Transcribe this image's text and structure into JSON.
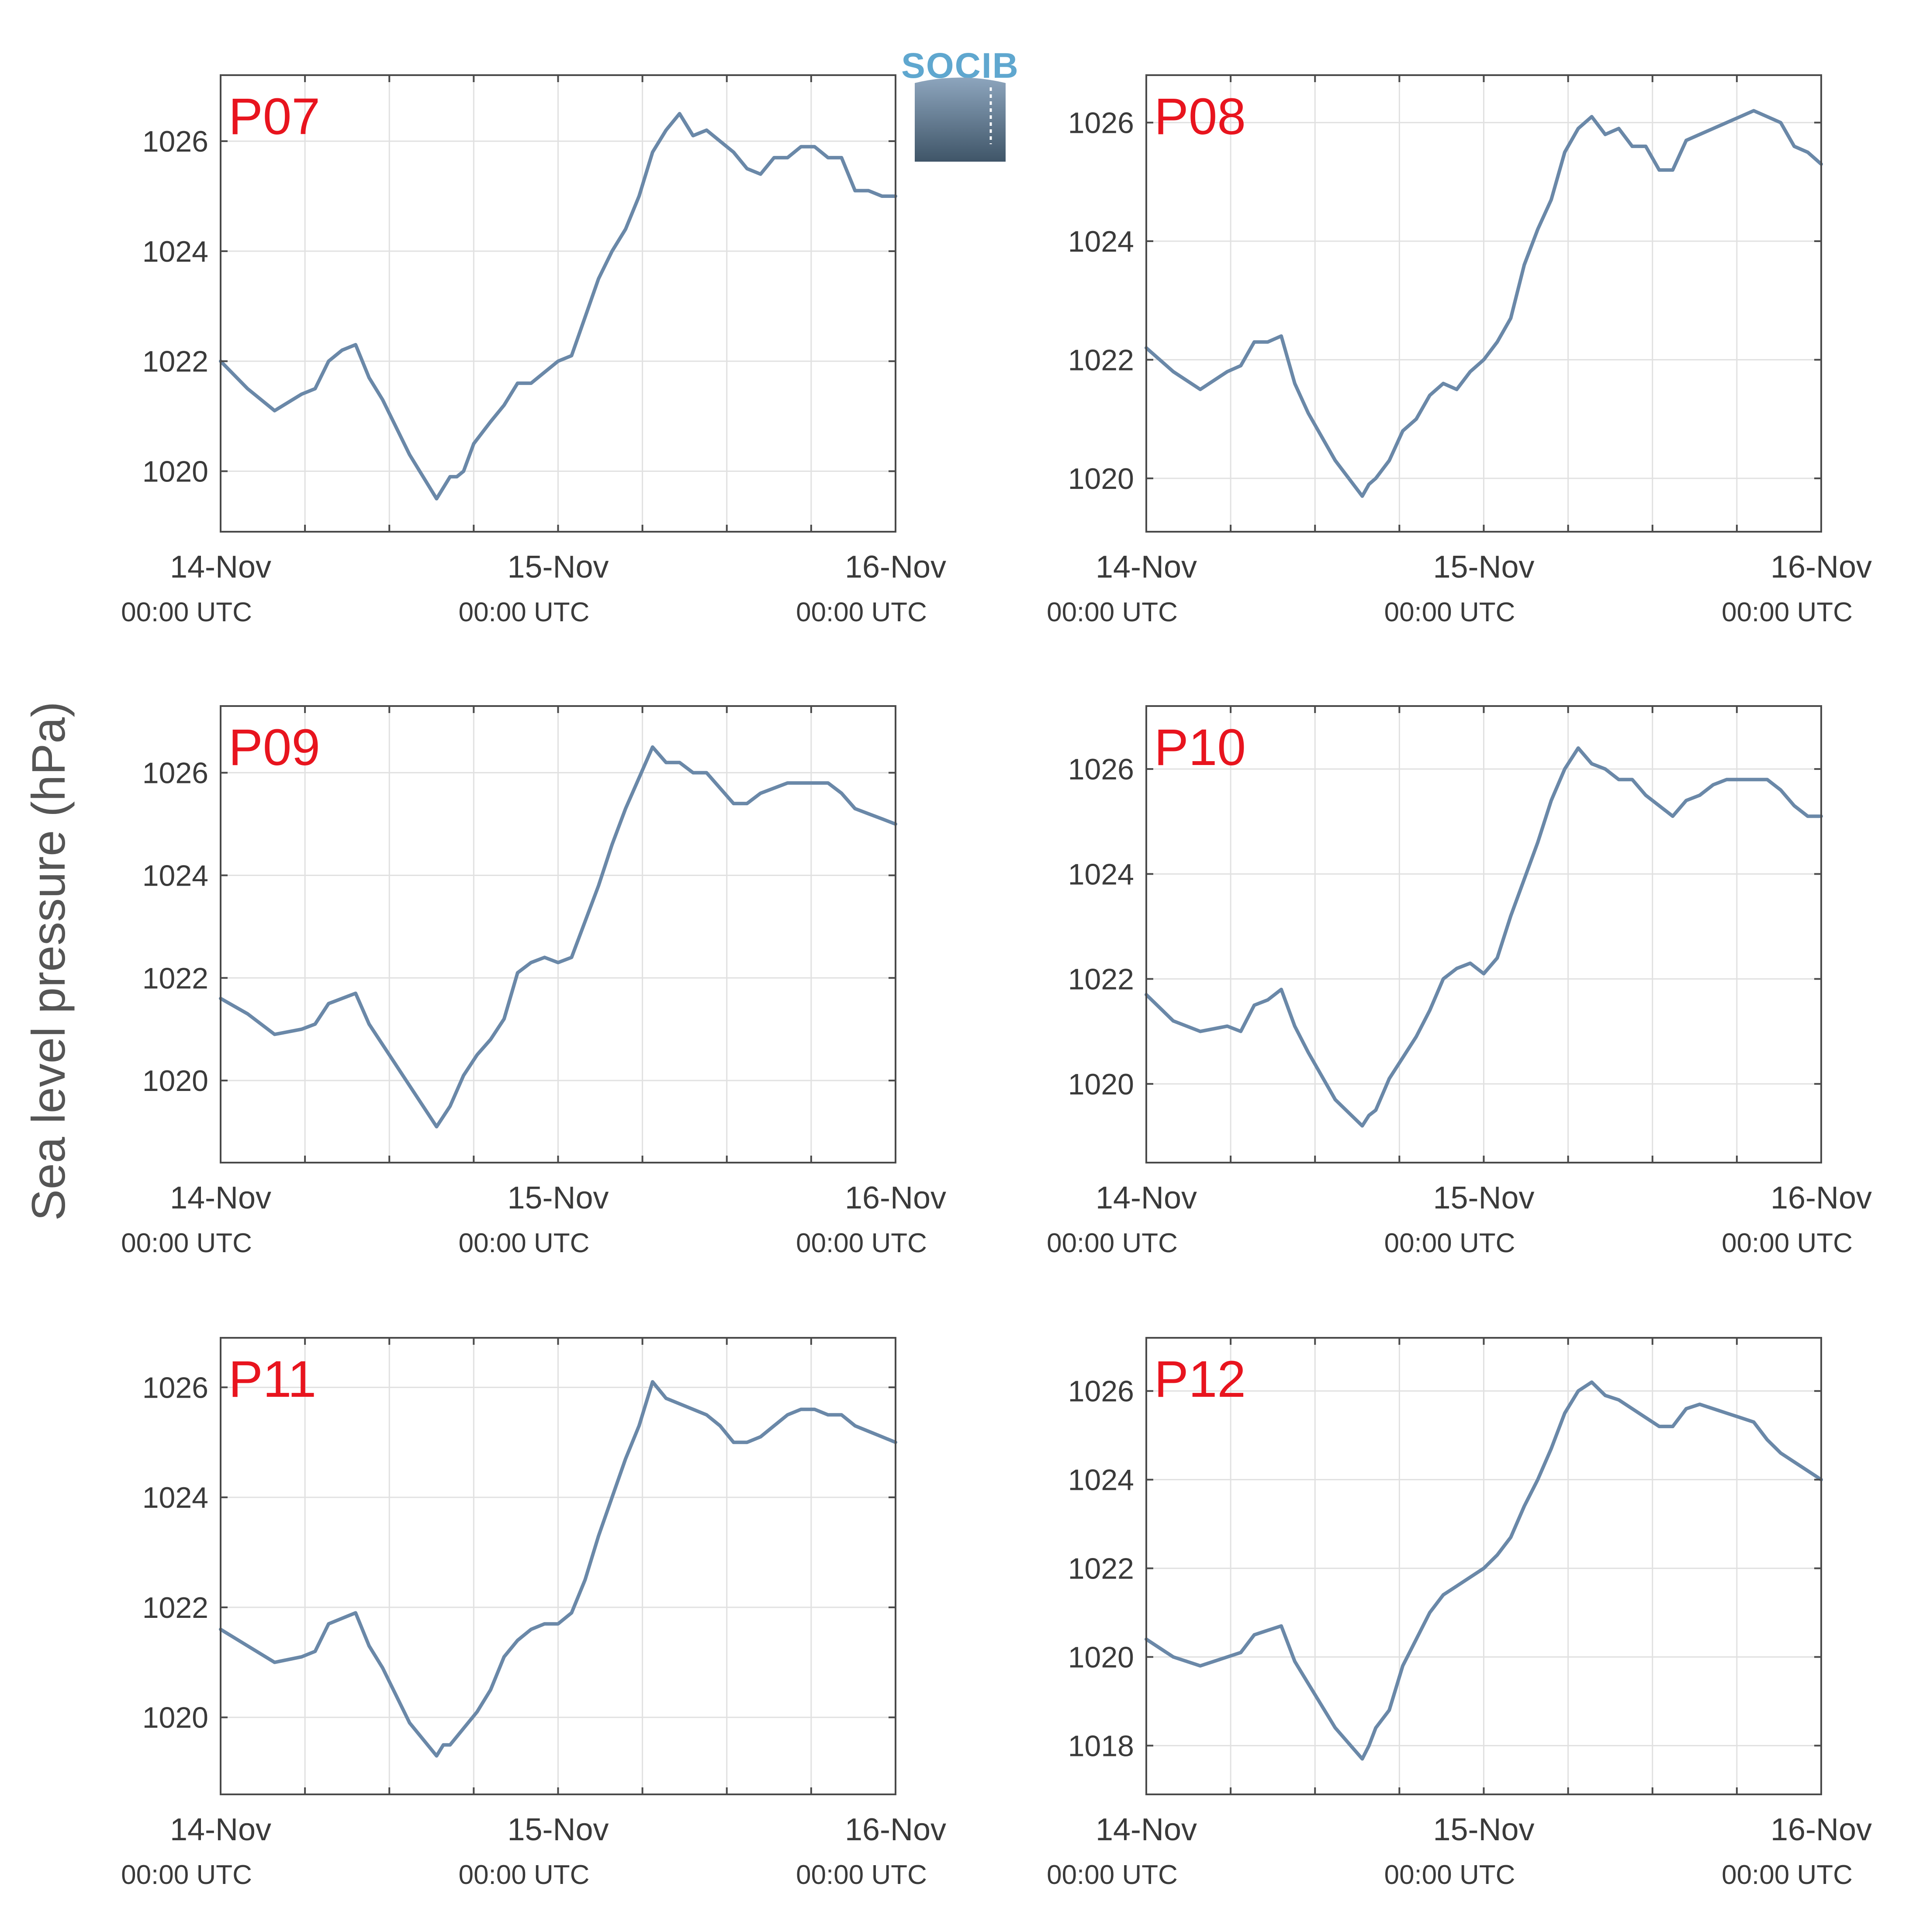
{
  "figure": {
    "ylabel": "Sea level pressure (hPa)",
    "logo_text": "SOCIB",
    "series_color": "#6a88a8",
    "station_label_color": "#e8141e"
  },
  "chart_data": [
    {
      "type": "line",
      "title": "P07",
      "x_ticks": [
        {
          "day": 0,
          "label": "14-Nov",
          "sub": "00:00 UTC"
        },
        {
          "day": 1,
          "label": "15-Nov",
          "sub": "00:00 UTC"
        },
        {
          "day": 2,
          "label": "16-Nov",
          "sub": "00:00 UTC"
        }
      ],
      "x_unit": "days since 14-Nov 00:00 UTC",
      "xlim": [
        0,
        2
      ],
      "ylim": [
        1018.9,
        1027.2
      ],
      "yticks": [
        1020,
        1022,
        1024,
        1026
      ],
      "grid": true,
      "x": [
        0,
        0.08,
        0.16,
        0.24,
        0.28,
        0.32,
        0.36,
        0.4,
        0.44,
        0.48,
        0.56,
        0.64,
        0.68,
        0.7,
        0.72,
        0.75,
        0.8,
        0.84,
        0.88,
        0.92,
        0.96,
        1.0,
        1.04,
        1.08,
        1.12,
        1.16,
        1.2,
        1.24,
        1.28,
        1.32,
        1.36,
        1.4,
        1.44,
        1.48,
        1.52,
        1.56,
        1.6,
        1.64,
        1.68,
        1.72,
        1.76,
        1.8,
        1.84,
        1.88,
        1.92,
        1.96,
        2.0
      ],
      "y": [
        1022.0,
        1021.5,
        1021.1,
        1021.4,
        1021.5,
        1022.0,
        1022.2,
        1022.3,
        1021.7,
        1021.3,
        1020.3,
        1019.5,
        1019.9,
        1019.9,
        1020.0,
        1020.5,
        1020.9,
        1021.2,
        1021.6,
        1021.6,
        1021.8,
        1022.0,
        1022.1,
        1022.8,
        1023.5,
        1024.0,
        1024.4,
        1025.0,
        1025.8,
        1026.2,
        1026.5,
        1026.1,
        1026.2,
        1026.0,
        1025.8,
        1025.5,
        1025.4,
        1025.7,
        1025.7,
        1025.9,
        1025.9,
        1025.7,
        1025.7,
        1025.1,
        1025.1,
        1025.0,
        1025.0
      ],
      "series": [
        {
          "name": ""
        }
      ]
    },
    {
      "type": "line",
      "title": "P08",
      "x_ticks": [
        {
          "day": 0,
          "label": "14-Nov",
          "sub": "00:00 UTC"
        },
        {
          "day": 1,
          "label": "15-Nov",
          "sub": "00:00 UTC"
        },
        {
          "day": 2,
          "label": "16-Nov",
          "sub": "00:00 UTC"
        }
      ],
      "xlim": [
        0,
        2
      ],
      "ylim": [
        1019.1,
        1026.8
      ],
      "yticks": [
        1020,
        1022,
        1024,
        1026
      ],
      "grid": true,
      "x": [
        0,
        0.08,
        0.16,
        0.24,
        0.28,
        0.32,
        0.36,
        0.4,
        0.44,
        0.48,
        0.56,
        0.64,
        0.66,
        0.68,
        0.72,
        0.76,
        0.8,
        0.84,
        0.88,
        0.92,
        0.96,
        1.0,
        1.04,
        1.08,
        1.12,
        1.16,
        1.2,
        1.24,
        1.28,
        1.32,
        1.36,
        1.4,
        1.44,
        1.48,
        1.52,
        1.56,
        1.6,
        1.64,
        1.68,
        1.72,
        1.76,
        1.8,
        1.84,
        1.88,
        1.92,
        1.96,
        2.0
      ],
      "y": [
        1022.2,
        1021.8,
        1021.5,
        1021.8,
        1021.9,
        1022.3,
        1022.3,
        1022.4,
        1021.6,
        1021.1,
        1020.3,
        1019.7,
        1019.9,
        1020.0,
        1020.3,
        1020.8,
        1021.0,
        1021.4,
        1021.6,
        1021.5,
        1021.8,
        1022.0,
        1022.3,
        1022.7,
        1023.6,
        1024.2,
        1024.7,
        1025.5,
        1025.9,
        1026.1,
        1025.8,
        1025.9,
        1025.6,
        1025.6,
        1025.2,
        1025.2,
        1025.7,
        1025.8,
        1025.9,
        1026.0,
        1026.1,
        1026.2,
        1026.1,
        1026.0,
        1025.6,
        1025.5,
        1025.3
      ],
      "series": [
        {
          "name": ""
        }
      ]
    },
    {
      "type": "line",
      "title": "P09",
      "x_ticks": [
        {
          "day": 0,
          "label": "14-Nov",
          "sub": "00:00 UTC"
        },
        {
          "day": 1,
          "label": "15-Nov",
          "sub": "00:00 UTC"
        },
        {
          "day": 2,
          "label": "16-Nov",
          "sub": "00:00 UTC"
        }
      ],
      "xlim": [
        0,
        2
      ],
      "ylim": [
        1018.4,
        1027.3
      ],
      "yticks": [
        1020,
        1022,
        1024,
        1026
      ],
      "grid": true,
      "x": [
        0,
        0.08,
        0.16,
        0.24,
        0.28,
        0.32,
        0.36,
        0.4,
        0.44,
        0.48,
        0.56,
        0.64,
        0.66,
        0.68,
        0.72,
        0.76,
        0.8,
        0.84,
        0.88,
        0.92,
        0.96,
        1.0,
        1.04,
        1.08,
        1.12,
        1.16,
        1.2,
        1.24,
        1.28,
        1.32,
        1.36,
        1.4,
        1.44,
        1.48,
        1.52,
        1.56,
        1.6,
        1.64,
        1.68,
        1.72,
        1.76,
        1.8,
        1.84,
        1.88,
        1.92,
        1.96,
        2.0
      ],
      "y": [
        1021.6,
        1021.3,
        1020.9,
        1021.0,
        1021.1,
        1021.5,
        1021.6,
        1021.7,
        1021.1,
        1020.7,
        1019.9,
        1019.1,
        1019.3,
        1019.5,
        1020.1,
        1020.5,
        1020.8,
        1021.2,
        1022.1,
        1022.3,
        1022.4,
        1022.3,
        1022.4,
        1023.1,
        1023.8,
        1024.6,
        1025.3,
        1025.9,
        1026.5,
        1026.2,
        1026.2,
        1026.0,
        1026.0,
        1025.7,
        1025.4,
        1025.4,
        1025.6,
        1025.7,
        1025.8,
        1025.8,
        1025.8,
        1025.8,
        1025.6,
        1025.3,
        1025.2,
        1025.1,
        1025.0
      ],
      "series": [
        {
          "name": ""
        }
      ]
    },
    {
      "type": "line",
      "title": "P10",
      "x_ticks": [
        {
          "day": 0,
          "label": "14-Nov",
          "sub": "00:00 UTC"
        },
        {
          "day": 1,
          "label": "15-Nov",
          "sub": "00:00 UTC"
        },
        {
          "day": 2,
          "label": "16-Nov",
          "sub": "00:00 UTC"
        }
      ],
      "xlim": [
        0,
        2
      ],
      "ylim": [
        1018.5,
        1027.2
      ],
      "yticks": [
        1020,
        1022,
        1024,
        1026
      ],
      "grid": true,
      "x": [
        0,
        0.08,
        0.16,
        0.24,
        0.28,
        0.32,
        0.36,
        0.4,
        0.44,
        0.48,
        0.56,
        0.64,
        0.66,
        0.68,
        0.72,
        0.76,
        0.8,
        0.84,
        0.88,
        0.92,
        0.96,
        1.0,
        1.04,
        1.08,
        1.12,
        1.16,
        1.2,
        1.24,
        1.28,
        1.32,
        1.36,
        1.4,
        1.44,
        1.48,
        1.52,
        1.56,
        1.6,
        1.64,
        1.68,
        1.72,
        1.76,
        1.8,
        1.84,
        1.88,
        1.92,
        1.96,
        2.0
      ],
      "y": [
        1021.7,
        1021.2,
        1021.0,
        1021.1,
        1021.0,
        1021.5,
        1021.6,
        1021.8,
        1021.1,
        1020.6,
        1019.7,
        1019.2,
        1019.4,
        1019.5,
        1020.1,
        1020.5,
        1020.9,
        1021.4,
        1022.0,
        1022.2,
        1022.3,
        1022.1,
        1022.4,
        1023.2,
        1023.9,
        1024.6,
        1025.4,
        1026.0,
        1026.4,
        1026.1,
        1026.0,
        1025.8,
        1025.8,
        1025.5,
        1025.3,
        1025.1,
        1025.4,
        1025.5,
        1025.7,
        1025.8,
        1025.8,
        1025.8,
        1025.8,
        1025.6,
        1025.3,
        1025.1,
        1025.1
      ],
      "series": [
        {
          "name": ""
        }
      ]
    },
    {
      "type": "line",
      "title": "P11",
      "x_ticks": [
        {
          "day": 0,
          "label": "14-Nov",
          "sub": "00:00 UTC"
        },
        {
          "day": 1,
          "label": "15-Nov",
          "sub": "00:00 UTC"
        },
        {
          "day": 2,
          "label": "16-Nov",
          "sub": "00:00 UTC"
        }
      ],
      "xlim": [
        0,
        2
      ],
      "ylim": [
        1018.6,
        1026.9
      ],
      "yticks": [
        1020,
        1022,
        1024,
        1026
      ],
      "grid": true,
      "x": [
        0,
        0.08,
        0.16,
        0.24,
        0.28,
        0.32,
        0.36,
        0.4,
        0.44,
        0.48,
        0.56,
        0.64,
        0.66,
        0.68,
        0.72,
        0.76,
        0.8,
        0.84,
        0.88,
        0.92,
        0.96,
        1.0,
        1.04,
        1.08,
        1.12,
        1.16,
        1.2,
        1.24,
        1.28,
        1.32,
        1.36,
        1.4,
        1.44,
        1.48,
        1.52,
        1.56,
        1.6,
        1.64,
        1.68,
        1.72,
        1.76,
        1.8,
        1.84,
        1.88,
        1.92,
        1.96,
        2.0
      ],
      "y": [
        1021.6,
        1021.3,
        1021.0,
        1021.1,
        1021.2,
        1021.7,
        1021.8,
        1021.9,
        1021.3,
        1020.9,
        1019.9,
        1019.3,
        1019.5,
        1019.5,
        1019.8,
        1020.1,
        1020.5,
        1021.1,
        1021.4,
        1021.6,
        1021.7,
        1021.7,
        1021.9,
        1022.5,
        1023.3,
        1024.0,
        1024.7,
        1025.3,
        1026.1,
        1025.8,
        1025.7,
        1025.6,
        1025.5,
        1025.3,
        1025.0,
        1025.0,
        1025.1,
        1025.3,
        1025.5,
        1025.6,
        1025.6,
        1025.5,
        1025.5,
        1025.3,
        1025.2,
        1025.1,
        1025.0
      ],
      "series": [
        {
          "name": ""
        }
      ]
    },
    {
      "type": "line",
      "title": "P12",
      "x_ticks": [
        {
          "day": 0,
          "label": "14-Nov",
          "sub": "00:00 UTC"
        },
        {
          "day": 1,
          "label": "15-Nov",
          "sub": "00:00 UTC"
        },
        {
          "day": 2,
          "label": "16-Nov",
          "sub": "00:00 UTC"
        }
      ],
      "xlim": [
        0,
        2
      ],
      "ylim": [
        1016.9,
        1027.2
      ],
      "yticks": [
        1018,
        1020,
        1022,
        1024,
        1026
      ],
      "grid": true,
      "x": [
        0,
        0.08,
        0.16,
        0.24,
        0.28,
        0.32,
        0.36,
        0.4,
        0.44,
        0.48,
        0.56,
        0.64,
        0.66,
        0.68,
        0.72,
        0.76,
        0.8,
        0.84,
        0.88,
        0.92,
        0.96,
        1.0,
        1.04,
        1.08,
        1.12,
        1.16,
        1.2,
        1.24,
        1.28,
        1.32,
        1.36,
        1.4,
        1.44,
        1.48,
        1.52,
        1.56,
        1.6,
        1.64,
        1.68,
        1.72,
        1.76,
        1.8,
        1.84,
        1.88,
        1.92,
        1.96,
        2.0
      ],
      "y": [
        1020.4,
        1020.0,
        1019.8,
        1020.0,
        1020.1,
        1020.5,
        1020.6,
        1020.7,
        1019.9,
        1019.4,
        1018.4,
        1017.7,
        1018.0,
        1018.4,
        1018.8,
        1019.8,
        1020.4,
        1021.0,
        1021.4,
        1021.6,
        1021.8,
        1022.0,
        1022.3,
        1022.7,
        1023.4,
        1024.0,
        1024.7,
        1025.5,
        1026.0,
        1026.2,
        1025.9,
        1025.8,
        1025.6,
        1025.4,
        1025.2,
        1025.2,
        1025.6,
        1025.7,
        1025.6,
        1025.5,
        1025.4,
        1025.3,
        1024.9,
        1024.6,
        1024.4,
        1024.2,
        1024.0
      ],
      "series": [
        {
          "name": ""
        }
      ]
    }
  ]
}
